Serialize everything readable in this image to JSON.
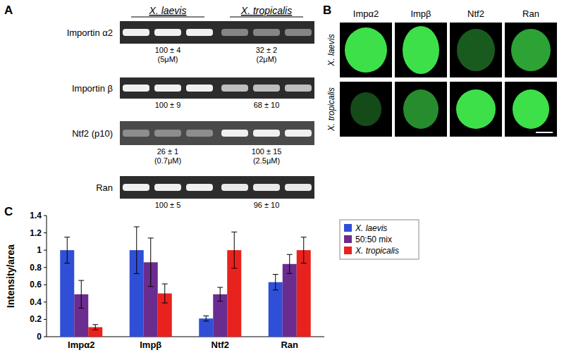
{
  "panel_labels": [
    "A",
    "B",
    "C"
  ],
  "panel_a": {
    "columns": [
      "X. laevis",
      "X. tropicalis"
    ],
    "rows": [
      {
        "label": "Importin α2",
        "cells": [
          {
            "value": 100,
            "label": "100 ± 4",
            "note": "(5μM)"
          },
          {
            "value": 32,
            "label": "32 ± 2",
            "note": "(2μM)"
          }
        ]
      },
      {
        "label": "Importin β",
        "cells": [
          {
            "value": 100,
            "label": "100 ± 9"
          },
          {
            "value": 68,
            "label": "68 ± 10"
          }
        ]
      },
      {
        "label": "Ntf2 (p10)",
        "cells": [
          {
            "value": 26,
            "label": "26 ± 1",
            "note": "(0.7μM)"
          },
          {
            "value": 100,
            "label": "100 ± 15",
            "note": "(2.5μM)"
          }
        ]
      },
      {
        "label": "Ran",
        "cells": [
          {
            "value": 100,
            "label": "100 ± 5"
          },
          {
            "value": 96,
            "label": "96 ± 10"
          }
        ]
      }
    ]
  },
  "panel_b": {
    "columns": [
      "Impα2",
      "Impβ",
      "Ntf2",
      "Ran"
    ],
    "rows": [
      "X. laevis",
      "X. tropicalis"
    ]
  },
  "chart_data": {
    "type": "bar",
    "y_label": "Intensity/area",
    "categories": [
      "Impα2",
      "Impβ",
      "Ntf2",
      "Ran"
    ],
    "series": [
      {
        "name": "X. laevis",
        "color": "#2f4fd6",
        "values": [
          1.0,
          1.0,
          0.21,
          0.63
        ],
        "errors": [
          0.15,
          0.27,
          0.03,
          0.09
        ]
      },
      {
        "name": "50:50 mix",
        "color": "#6b2c8f",
        "values": [
          0.49,
          0.86,
          0.49,
          0.84
        ],
        "errors": [
          0.16,
          0.28,
          0.08,
          0.11
        ]
      },
      {
        "name": "X. tropicalis",
        "color": "#e8221e",
        "values": [
          0.11,
          0.5,
          1.0,
          1.0
        ],
        "errors": [
          0.03,
          0.11,
          0.21,
          0.15
        ]
      }
    ],
    "ylim": [
      0,
      1.4
    ],
    "yticks": [
      0,
      0.2,
      0.4,
      0.6,
      0.8,
      1,
      1.2,
      1.4
    ],
    "legend": "right",
    "grid": false
  }
}
